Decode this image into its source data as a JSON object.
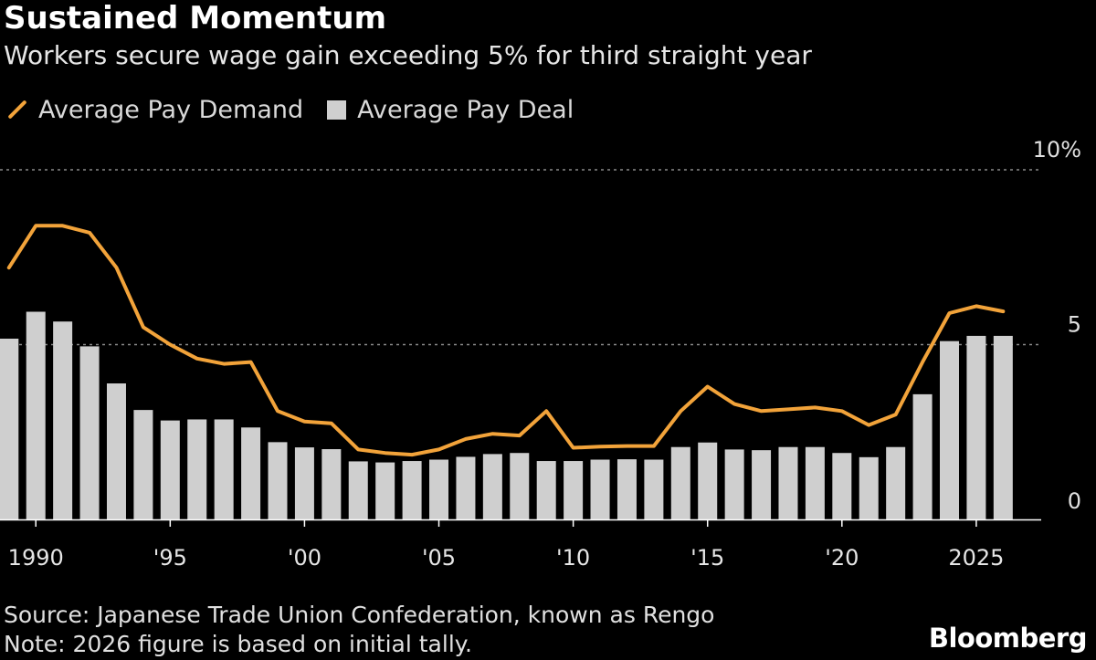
{
  "header": {
    "title": "Sustained Momentum",
    "subtitle": "Workers secure wage gain exceeding 5% for third straight year"
  },
  "legend": {
    "line_label": "Average Pay Demand",
    "bar_label": "Average Pay Deal"
  },
  "footer": {
    "source": "Source: Japanese Trade Union Confederation, known as Rengo",
    "note": "Note: 2026 figure is based on initial tally."
  },
  "brand": "Bloomberg",
  "colors": {
    "background": "#000000",
    "line": "#f2a33a",
    "bar": "#cfcfcf",
    "grid": "#8a8a8a",
    "text": "#ffffff"
  },
  "chart_data": {
    "type": "bar",
    "title": "Sustained Momentum",
    "subtitle": "Workers secure wage gain exceeding 5% for third straight year",
    "xlabel": "",
    "ylabel": "",
    "ylim": [
      0,
      10
    ],
    "yticks": [
      0,
      5,
      10
    ],
    "ytick_labels": [
      "0",
      "5",
      "10%"
    ],
    "grid": true,
    "legend_position": "top-left",
    "years": [
      1989,
      1990,
      1991,
      1992,
      1993,
      1994,
      1995,
      1996,
      1997,
      1998,
      1999,
      2000,
      2001,
      2002,
      2003,
      2004,
      2005,
      2006,
      2007,
      2008,
      2009,
      2010,
      2011,
      2012,
      2013,
      2014,
      2015,
      2016,
      2017,
      2018,
      2019,
      2020,
      2021,
      2022,
      2023,
      2024,
      2025,
      2026
    ],
    "xtick_labels": [
      {
        "year": 1990,
        "label": "1990"
      },
      {
        "year": 1995,
        "label": "'95"
      },
      {
        "year": 2000,
        "label": "'00"
      },
      {
        "year": 2005,
        "label": "'05"
      },
      {
        "year": 2010,
        "label": "'10"
      },
      {
        "year": 2015,
        "label": "'15"
      },
      {
        "year": 2020,
        "label": "'20"
      },
      {
        "year": 2025,
        "label": "2025"
      }
    ],
    "series": [
      {
        "name": "Average Pay Deal",
        "type": "bar",
        "values": [
          5.17,
          5.94,
          5.66,
          4.95,
          3.89,
          3.13,
          2.83,
          2.86,
          2.86,
          2.63,
          2.21,
          2.06,
          2.01,
          1.66,
          1.63,
          1.67,
          1.71,
          1.79,
          1.87,
          1.9,
          1.67,
          1.67,
          1.71,
          1.72,
          1.71,
          2.07,
          2.2,
          2.0,
          1.98,
          2.07,
          2.07,
          1.9,
          1.78,
          2.07,
          3.58,
          5.1,
          5.25,
          5.25
        ]
      },
      {
        "name": "Average Pay Demand",
        "type": "line",
        "values": [
          7.2,
          8.4,
          8.4,
          8.2,
          7.2,
          5.5,
          5.0,
          4.6,
          4.45,
          4.5,
          3.1,
          2.8,
          2.75,
          2.0,
          1.9,
          1.85,
          2.0,
          2.3,
          2.45,
          2.4,
          3.1,
          2.05,
          2.08,
          2.1,
          2.1,
          3.1,
          3.8,
          3.3,
          3.1,
          3.15,
          3.2,
          3.1,
          2.7,
          3.0,
          4.5,
          5.9,
          6.1,
          5.95
        ]
      }
    ]
  }
}
